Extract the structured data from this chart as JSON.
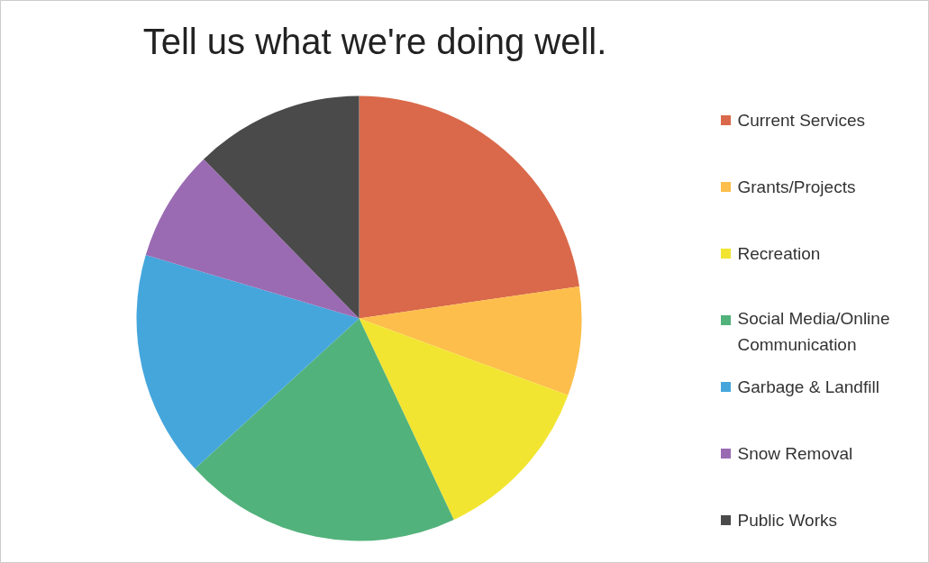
{
  "chart_data": {
    "type": "pie",
    "title": "Tell us what we're doing well.",
    "categories": [
      "Current Services",
      "Grants/Projects",
      "Recreation",
      "Social Media/Online Communication",
      "Garbage & Landfill",
      "Snow Removal",
      "Public Works"
    ],
    "values": [
      22.7,
      7.9,
      12.4,
      20.2,
      16.4,
      8.1,
      12.3
    ],
    "colors": [
      "#d9694a",
      "#fdbe4b",
      "#f2e532",
      "#52b27b",
      "#45a6dc",
      "#9a6bb3",
      "#4a4a4a"
    ],
    "legend": "right"
  }
}
